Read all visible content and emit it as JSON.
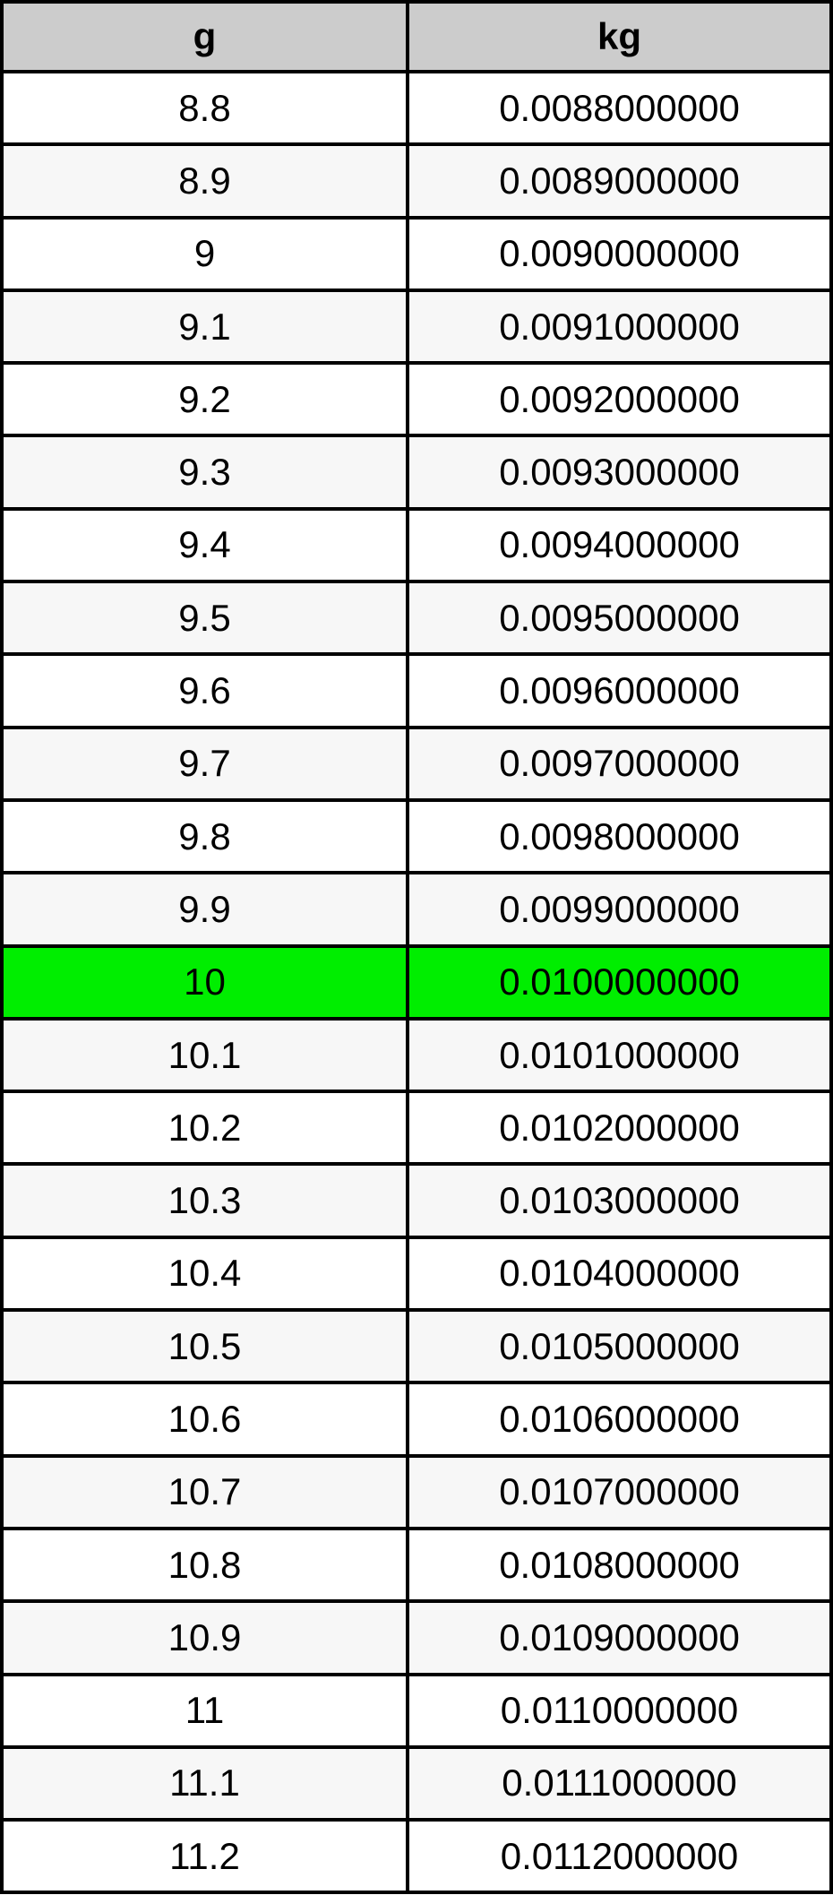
{
  "chart_data": {
    "type": "table",
    "columns": [
      "g",
      "kg"
    ],
    "rows": [
      [
        "8.8",
        "0.0088000000"
      ],
      [
        "8.9",
        "0.0089000000"
      ],
      [
        "9",
        "0.0090000000"
      ],
      [
        "9.1",
        "0.0091000000"
      ],
      [
        "9.2",
        "0.0092000000"
      ],
      [
        "9.3",
        "0.0093000000"
      ],
      [
        "9.4",
        "0.0094000000"
      ],
      [
        "9.5",
        "0.0095000000"
      ],
      [
        "9.6",
        "0.0096000000"
      ],
      [
        "9.7",
        "0.0097000000"
      ],
      [
        "9.8",
        "0.0098000000"
      ],
      [
        "9.9",
        "0.0099000000"
      ],
      [
        "10",
        "0.0100000000"
      ],
      [
        "10.1",
        "0.0101000000"
      ],
      [
        "10.2",
        "0.0102000000"
      ],
      [
        "10.3",
        "0.0103000000"
      ],
      [
        "10.4",
        "0.0104000000"
      ],
      [
        "10.5",
        "0.0105000000"
      ],
      [
        "10.6",
        "0.0106000000"
      ],
      [
        "10.7",
        "0.0107000000"
      ],
      [
        "10.8",
        "0.0108000000"
      ],
      [
        "10.9",
        "0.0109000000"
      ],
      [
        "11",
        "0.0110000000"
      ],
      [
        "11.1",
        "0.0111000000"
      ],
      [
        "11.2",
        "0.0112000000"
      ]
    ],
    "highlight_row_index": 12,
    "highlighted_g_value": "10",
    "highlighted_kg_value": "0.0100000000"
  },
  "colors": {
    "header_bg": "#cccccc",
    "row_bg": "#ffffff",
    "row_alt_bg": "#f7f7f7",
    "highlight_bg": "#00ee00",
    "border": "#000000",
    "text": "#000000"
  }
}
